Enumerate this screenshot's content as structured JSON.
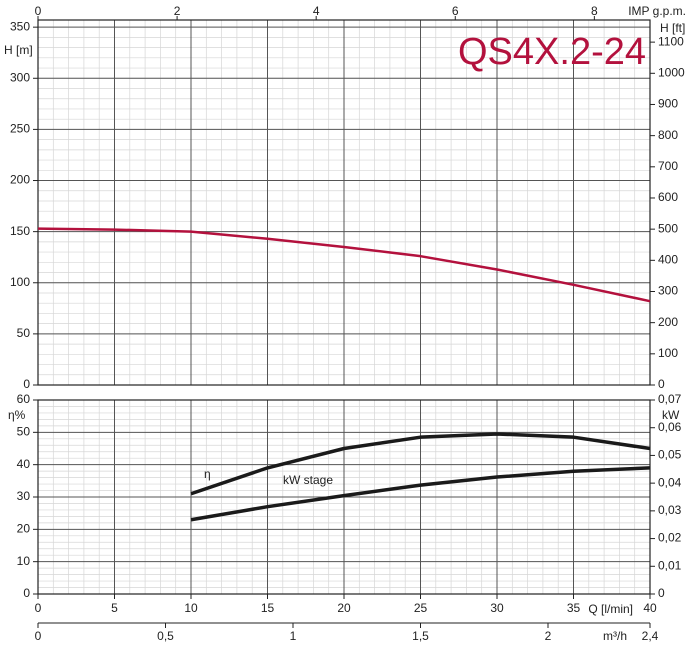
{
  "chart_data": [
    {
      "type": "line",
      "title": "QS4X.2-24",
      "ylabel": "H [m]",
      "y2label": "H [ft]",
      "x2label": "IMP g.p.m.",
      "xlim": [
        0,
        40
      ],
      "x2lim": [
        0,
        8.8
      ],
      "x2ticks": [
        0,
        2,
        4,
        6,
        8
      ],
      "ylim": [
        0,
        357
      ],
      "yticks": [
        0,
        50,
        100,
        150,
        200,
        250,
        300,
        350
      ],
      "y2lim": [
        0,
        1171
      ],
      "y2ticks": [
        0,
        100,
        200,
        300,
        400,
        500,
        600,
        700,
        800,
        900,
        1000,
        1100
      ],
      "grid": true,
      "minor_grid": {
        "x": 1,
        "y": 10
      },
      "series": [
        {
          "name": "H",
          "color": "#b3113d",
          "x": [
            0,
            5,
            10,
            15,
            20,
            25,
            30,
            35,
            40
          ],
          "values": [
            153,
            152,
            150,
            143,
            135,
            126,
            113,
            98,
            82
          ]
        }
      ]
    },
    {
      "type": "line",
      "ylabel": "η%",
      "y2label": "kW",
      "xlabel": "Q [l/min]",
      "x2label": "m³/h",
      "xlim": [
        0,
        40
      ],
      "xticks": [
        0,
        5,
        10,
        15,
        20,
        25,
        30,
        35,
        40
      ],
      "x2lim": [
        0,
        2.4
      ],
      "x2ticks": [
        0,
        {
          "value": 0.5,
          "label": "0,5"
        },
        1,
        {
          "value": 1.5,
          "label": "1,5"
        },
        2,
        {
          "value": 2.4,
          "label": "2,4"
        }
      ],
      "ylim": [
        0,
        60
      ],
      "yticks": [
        0,
        10,
        20,
        30,
        40,
        50,
        60
      ],
      "y2lim": [
        0,
        0.07
      ],
      "y2ticks": [
        0,
        {
          "value": 0.01,
          "label": "0,01"
        },
        {
          "value": 0.02,
          "label": "0,02"
        },
        {
          "value": 0.03,
          "label": "0,03"
        },
        {
          "value": 0.04,
          "label": "0,04"
        },
        {
          "value": 0.05,
          "label": "0,05"
        },
        {
          "value": 0.06,
          "label": "0,06"
        },
        {
          "value": 0.07,
          "label": "0,07"
        }
      ],
      "grid": true,
      "minor_grid": {
        "x": 1,
        "y": 2
      },
      "series": [
        {
          "name": "η",
          "color": "#1a1a1a",
          "x": [
            10,
            15,
            20,
            25,
            30,
            35,
            40
          ],
          "values": [
            31,
            39,
            45,
            48.5,
            49.5,
            48.5,
            45
          ]
        },
        {
          "name": "kW stage",
          "color": "#1a1a1a",
          "axis": "y2",
          "x": [
            10,
            15,
            20,
            25,
            30,
            35,
            40
          ],
          "values": [
            0.0268,
            0.0315,
            0.0355,
            0.0393,
            0.0422,
            0.0443,
            0.0455
          ]
        }
      ]
    }
  ]
}
